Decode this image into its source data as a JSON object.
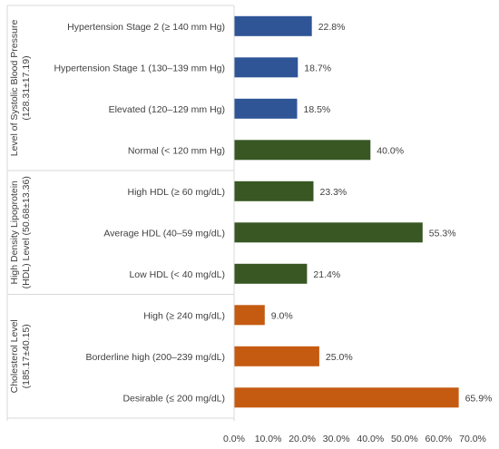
{
  "chart_data": {
    "type": "bar",
    "orientation": "horizontal",
    "xlim": [
      0,
      70
    ],
    "xticks": [
      "0.0%",
      "10.0%",
      "20.0%",
      "30.0%",
      "40.0%",
      "50.0%",
      "60.0%",
      "70.0%"
    ],
    "grid": false,
    "legend": "none",
    "groups": [
      {
        "label_line1": "Level of Systolic Blood Pressure",
        "label_line2": "(128.31±17.19)",
        "categories": [
          {
            "label": "Hypertension Stage 2 (≥ 140 mm Hg)",
            "value": 22.8,
            "data_label": "22.8%",
            "color": "#2F5597"
          },
          {
            "label": "Hypertension Stage 1 (130–139 mm Hg)",
            "value": 18.7,
            "data_label": "18.7%",
            "color": "#2F5597"
          },
          {
            "label": "Elevated (120–129 mm Hg)",
            "value": 18.5,
            "data_label": "18.5%",
            "color": "#2F5597"
          },
          {
            "label": "Normal (< 120 mm Hg)",
            "value": 40.0,
            "data_label": "40.0%",
            "color": "#385723"
          }
        ]
      },
      {
        "label_line1": "High Density Lipoprotein",
        "label_line2": "(HDL) Level (50.68±13.36)",
        "categories": [
          {
            "label": "High HDL (≥ 60 mg/dL)",
            "value": 23.3,
            "data_label": "23.3%",
            "color": "#385723"
          },
          {
            "label": "Average HDL (40–59 mg/dL)",
            "value": 55.3,
            "data_label": "55.3%",
            "color": "#385723"
          },
          {
            "label": "Low HDL (< 40 mg/dL)",
            "value": 21.4,
            "data_label": "21.4%",
            "color": "#385723"
          }
        ]
      },
      {
        "label_line1": "Cholesterol Level",
        "label_line2": "(185.17±40.15)",
        "categories": [
          {
            "label": "High (≥ 240 mg/dL)",
            "value": 9.0,
            "data_label": "9.0%",
            "color": "#C55A11"
          },
          {
            "label": "Borderline high (200–239 mg/dL)",
            "value": 25.0,
            "data_label": "25.0%",
            "color": "#C55A11"
          },
          {
            "label": "Desirable (≤ 200 mg/dL)",
            "value": 65.9,
            "data_label": "65.9%",
            "color": "#C55A11"
          }
        ]
      }
    ]
  }
}
